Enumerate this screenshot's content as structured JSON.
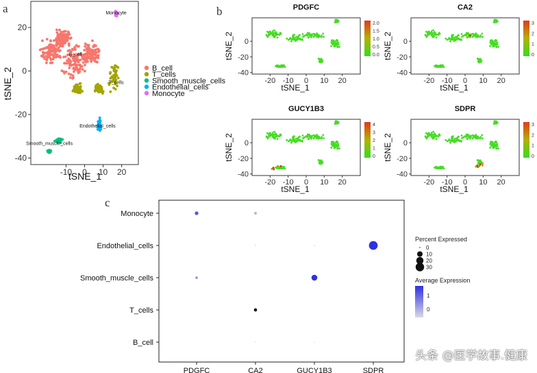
{
  "watermark": "头条 @医学故事.健康",
  "panel_a": {
    "letter": "a",
    "xlabel": "tSNE_1",
    "ylabel": "tSNE_2",
    "xticks": [
      -10,
      0,
      10,
      20
    ],
    "yticks": [
      20,
      0,
      -20,
      -40
    ],
    "legend": [
      {
        "label": "B_cell",
        "color": "#F8766D"
      },
      {
        "label": "T_cells",
        "color": "#A3A500"
      },
      {
        "label": "Smooth_muscle_cells",
        "color": "#00BF7D"
      },
      {
        "label": "Endothelial_cells",
        "color": "#00B0F6"
      },
      {
        "label": "Monocyte",
        "color": "#E76BF3"
      }
    ],
    "cluster_labels": [
      {
        "text": "Monocyte",
        "x": 17,
        "y": 26
      },
      {
        "text": "B_cell",
        "x": -5,
        "y": 7
      },
      {
        "text": "T_cells",
        "x": 17,
        "y": -6
      },
      {
        "text": "Endothelial_cells",
        "x": 7,
        "y": -26
      },
      {
        "text": "Smooth_muscle_cells",
        "x": -19,
        "y": -34
      }
    ]
  },
  "panel_b": {
    "letter": "b",
    "xlabel": "tSNE_1",
    "ylabel": "tSNE_2",
    "xticks": [
      -20,
      -10,
      0,
      10,
      20
    ],
    "yticks": [
      0,
      -20,
      -40
    ],
    "plots": [
      {
        "title": "PDGFC",
        "scale": [
          "2.0",
          "1.5",
          "1.0",
          "0.5",
          "0.0"
        ]
      },
      {
        "title": "CA2",
        "scale": [
          "3",
          "2",
          "1",
          "0"
        ]
      },
      {
        "title": "GUCY1B3",
        "scale": [
          "4",
          "3",
          "2",
          "1",
          "0"
        ]
      },
      {
        "title": "SDPR",
        "scale": [
          "3",
          "2",
          "1",
          "0"
        ]
      }
    ]
  },
  "chart_data": {
    "type": "scatter",
    "title": "",
    "xlabel": "",
    "ylabel": "",
    "letter": "c",
    "genes": [
      "PDGFC",
      "CA2",
      "GUCY1B3",
      "SDPR"
    ],
    "cell_types": [
      "Monocyte",
      "Endothelial_cells",
      "Smooth_muscle_cells",
      "T_cells",
      "B_cell"
    ],
    "points": [
      {
        "gene": "PDGFC",
        "cell": "Monocyte",
        "pct": 3,
        "avg": 1.3
      },
      {
        "gene": "CA2",
        "cell": "Monocyte",
        "pct": 1,
        "avg": 0
      },
      {
        "gene": "CA2",
        "cell": "Endothelial_cells",
        "pct": 0.5,
        "avg": -0.3
      },
      {
        "gene": "GUCY1B3",
        "cell": "Endothelial_cells",
        "pct": 0.5,
        "avg": -0.3
      },
      {
        "gene": "SDPR",
        "cell": "Endothelial_cells",
        "pct": 32,
        "avg": 1.8
      },
      {
        "gene": "PDGFC",
        "cell": "Smooth_muscle_cells",
        "pct": 1,
        "avg": 0.3
      },
      {
        "gene": "GUCY1B3",
        "cell": "Smooth_muscle_cells",
        "pct": 12,
        "avg": 1.9
      },
      {
        "gene": "CA2",
        "cell": "T_cells",
        "pct": 2,
        "avg": 2.0
      },
      {
        "gene": "CA2",
        "cell": "B_cell",
        "pct": 0.5,
        "avg": -0.4
      },
      {
        "gene": "GUCY1B3",
        "cell": "B_cell",
        "pct": 0.5,
        "avg": -0.4
      }
    ],
    "size_legend": {
      "title": "Percent Expressed",
      "values": [
        0,
        10,
        20,
        30
      ]
    },
    "color_legend": {
      "title": "Average Expression",
      "ticks": [
        1,
        0
      ],
      "low": "#D8D8E8",
      "high": "#3030E0"
    }
  }
}
